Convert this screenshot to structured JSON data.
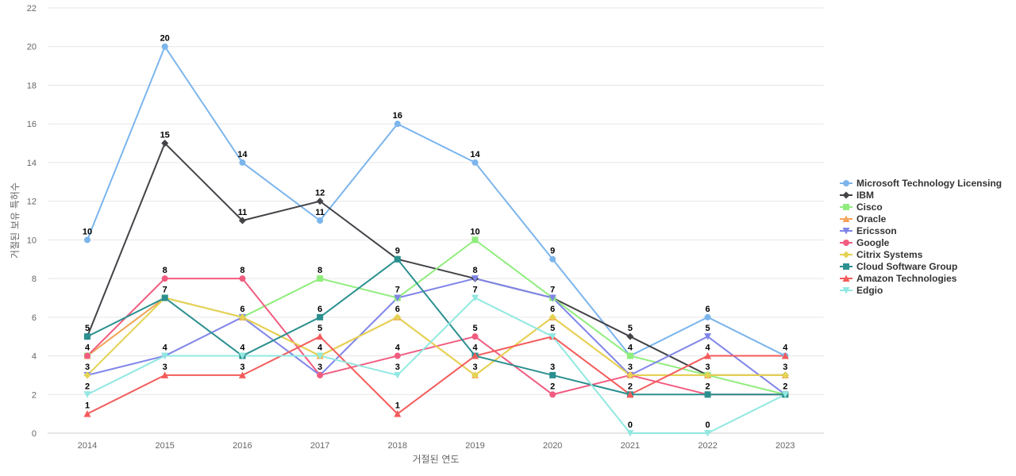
{
  "chart_data": {
    "type": "line",
    "title": "",
    "xlabel": "거절된 연도",
    "ylabel": "거절된 보유 특허수",
    "categories": [
      "2014",
      "2015",
      "2016",
      "2017",
      "2018",
      "2019",
      "2020",
      "2021",
      "2022",
      "2023"
    ],
    "ylim": [
      0,
      22
    ],
    "yticks": [
      0,
      2,
      4,
      6,
      8,
      10,
      12,
      14,
      16,
      18,
      20,
      22
    ],
    "grid": true,
    "legend_position": "right",
    "series": [
      {
        "name": "Microsoft Technology Licensing",
        "color": "#7cb5ec",
        "marker": "circle",
        "values": [
          10,
          20,
          14,
          11,
          16,
          14,
          9,
          4,
          6,
          4
        ]
      },
      {
        "name": "IBM",
        "color": "#434348",
        "marker": "diamond",
        "values": [
          5,
          15,
          11,
          12,
          9,
          8,
          7,
          5,
          3,
          3
        ]
      },
      {
        "name": "Cisco",
        "color": "#90ed7d",
        "marker": "square",
        "values": [
          4,
          7,
          6,
          8,
          7,
          10,
          7,
          4,
          3,
          2
        ]
      },
      {
        "name": "Oracle",
        "color": "#f7a35c",
        "marker": "triangle",
        "values": [
          4,
          7,
          6,
          4,
          6,
          3,
          6,
          3,
          3,
          3
        ]
      },
      {
        "name": "Ericsson",
        "color": "#8085e9",
        "marker": "triangle-down",
        "values": [
          3,
          4,
          6,
          3,
          7,
          8,
          7,
          3,
          5,
          2
        ]
      },
      {
        "name": "Google",
        "color": "#f15c80",
        "marker": "circle",
        "values": [
          4,
          8,
          8,
          3,
          4,
          5,
          2,
          3,
          2,
          2
        ]
      },
      {
        "name": "Citrix Systems",
        "color": "#e4d354",
        "marker": "diamond",
        "values": [
          3,
          7,
          6,
          4,
          6,
          3,
          6,
          3,
          3,
          3
        ]
      },
      {
        "name": "Cloud Software Group",
        "color": "#2b908f",
        "marker": "square",
        "values": [
          5,
          7,
          4,
          6,
          9,
          4,
          3,
          2,
          2,
          2
        ]
      },
      {
        "name": "Amazon Technologies",
        "color": "#f45b5b",
        "marker": "triangle",
        "values": [
          1,
          3,
          3,
          5,
          1,
          4,
          5,
          2,
          4,
          4
        ]
      },
      {
        "name": "Edgio",
        "color": "#91e8e1",
        "marker": "triangle-down",
        "values": [
          2,
          4,
          4,
          4,
          3,
          7,
          5,
          0,
          0,
          2
        ]
      }
    ],
    "data_labels": [
      {
        "x": "2014",
        "values": [
          "10",
          "5",
          "4",
          "3",
          "2",
          "1"
        ]
      },
      {
        "x": "2015",
        "values": [
          "20",
          "15",
          "8",
          "7",
          "4",
          "3"
        ]
      },
      {
        "x": "2016",
        "values": [
          "14",
          "11",
          "8",
          "6",
          "4",
          "3"
        ]
      },
      {
        "x": "2017",
        "values": [
          "12",
          "11",
          "8",
          "6",
          "5",
          "4",
          "3"
        ]
      },
      {
        "x": "2018",
        "values": [
          "16",
          "9",
          "7",
          "6",
          "4",
          "3",
          "1"
        ]
      },
      {
        "x": "2019",
        "values": [
          "14",
          "10",
          "8",
          "7",
          "5",
          "4",
          "3"
        ]
      },
      {
        "x": "2020",
        "values": [
          "9",
          "7",
          "6",
          "5",
          "3",
          "2"
        ]
      },
      {
        "x": "2021",
        "values": [
          "5",
          "4",
          "3",
          "2",
          "0"
        ]
      },
      {
        "x": "2022",
        "values": [
          "6",
          "5",
          "4",
          "3",
          "2",
          "0"
        ]
      },
      {
        "x": "2023",
        "values": [
          "4",
          "3",
          "2"
        ]
      }
    ]
  }
}
